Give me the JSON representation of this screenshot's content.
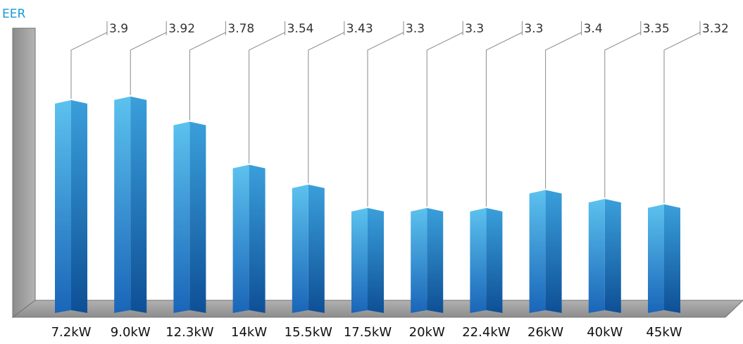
{
  "chart_data": {
    "type": "bar",
    "ylabel": "EER",
    "xlabel": "",
    "categories": [
      "7.2kW",
      "9.0kW",
      "12.3kW",
      "14kW",
      "15.5kW",
      "17.5kW",
      "20kW",
      "22.4kW",
      "26kW",
      "40kW",
      "45kW"
    ],
    "values": [
      3.9,
      3.92,
      3.78,
      3.54,
      3.43,
      3.3,
      3.3,
      3.3,
      3.4,
      3.35,
      3.32
    ],
    "value_labels": [
      "3.9",
      "3.92",
      "3.78",
      "3.54",
      "3.43",
      "3.3",
      "3.3",
      "3.3",
      "3.4",
      "3.35",
      "3.32"
    ],
    "style": "3d-columns",
    "colors": {
      "bar_light": "#5cc2ee",
      "bar_dark": "#1a65b8",
      "bar_side": "#0e4f96",
      "wall": "#9a9a9a",
      "floor": "#a3a3a3",
      "ylabel": "#1a9ad6",
      "leader": "#8a8a8a"
    }
  }
}
